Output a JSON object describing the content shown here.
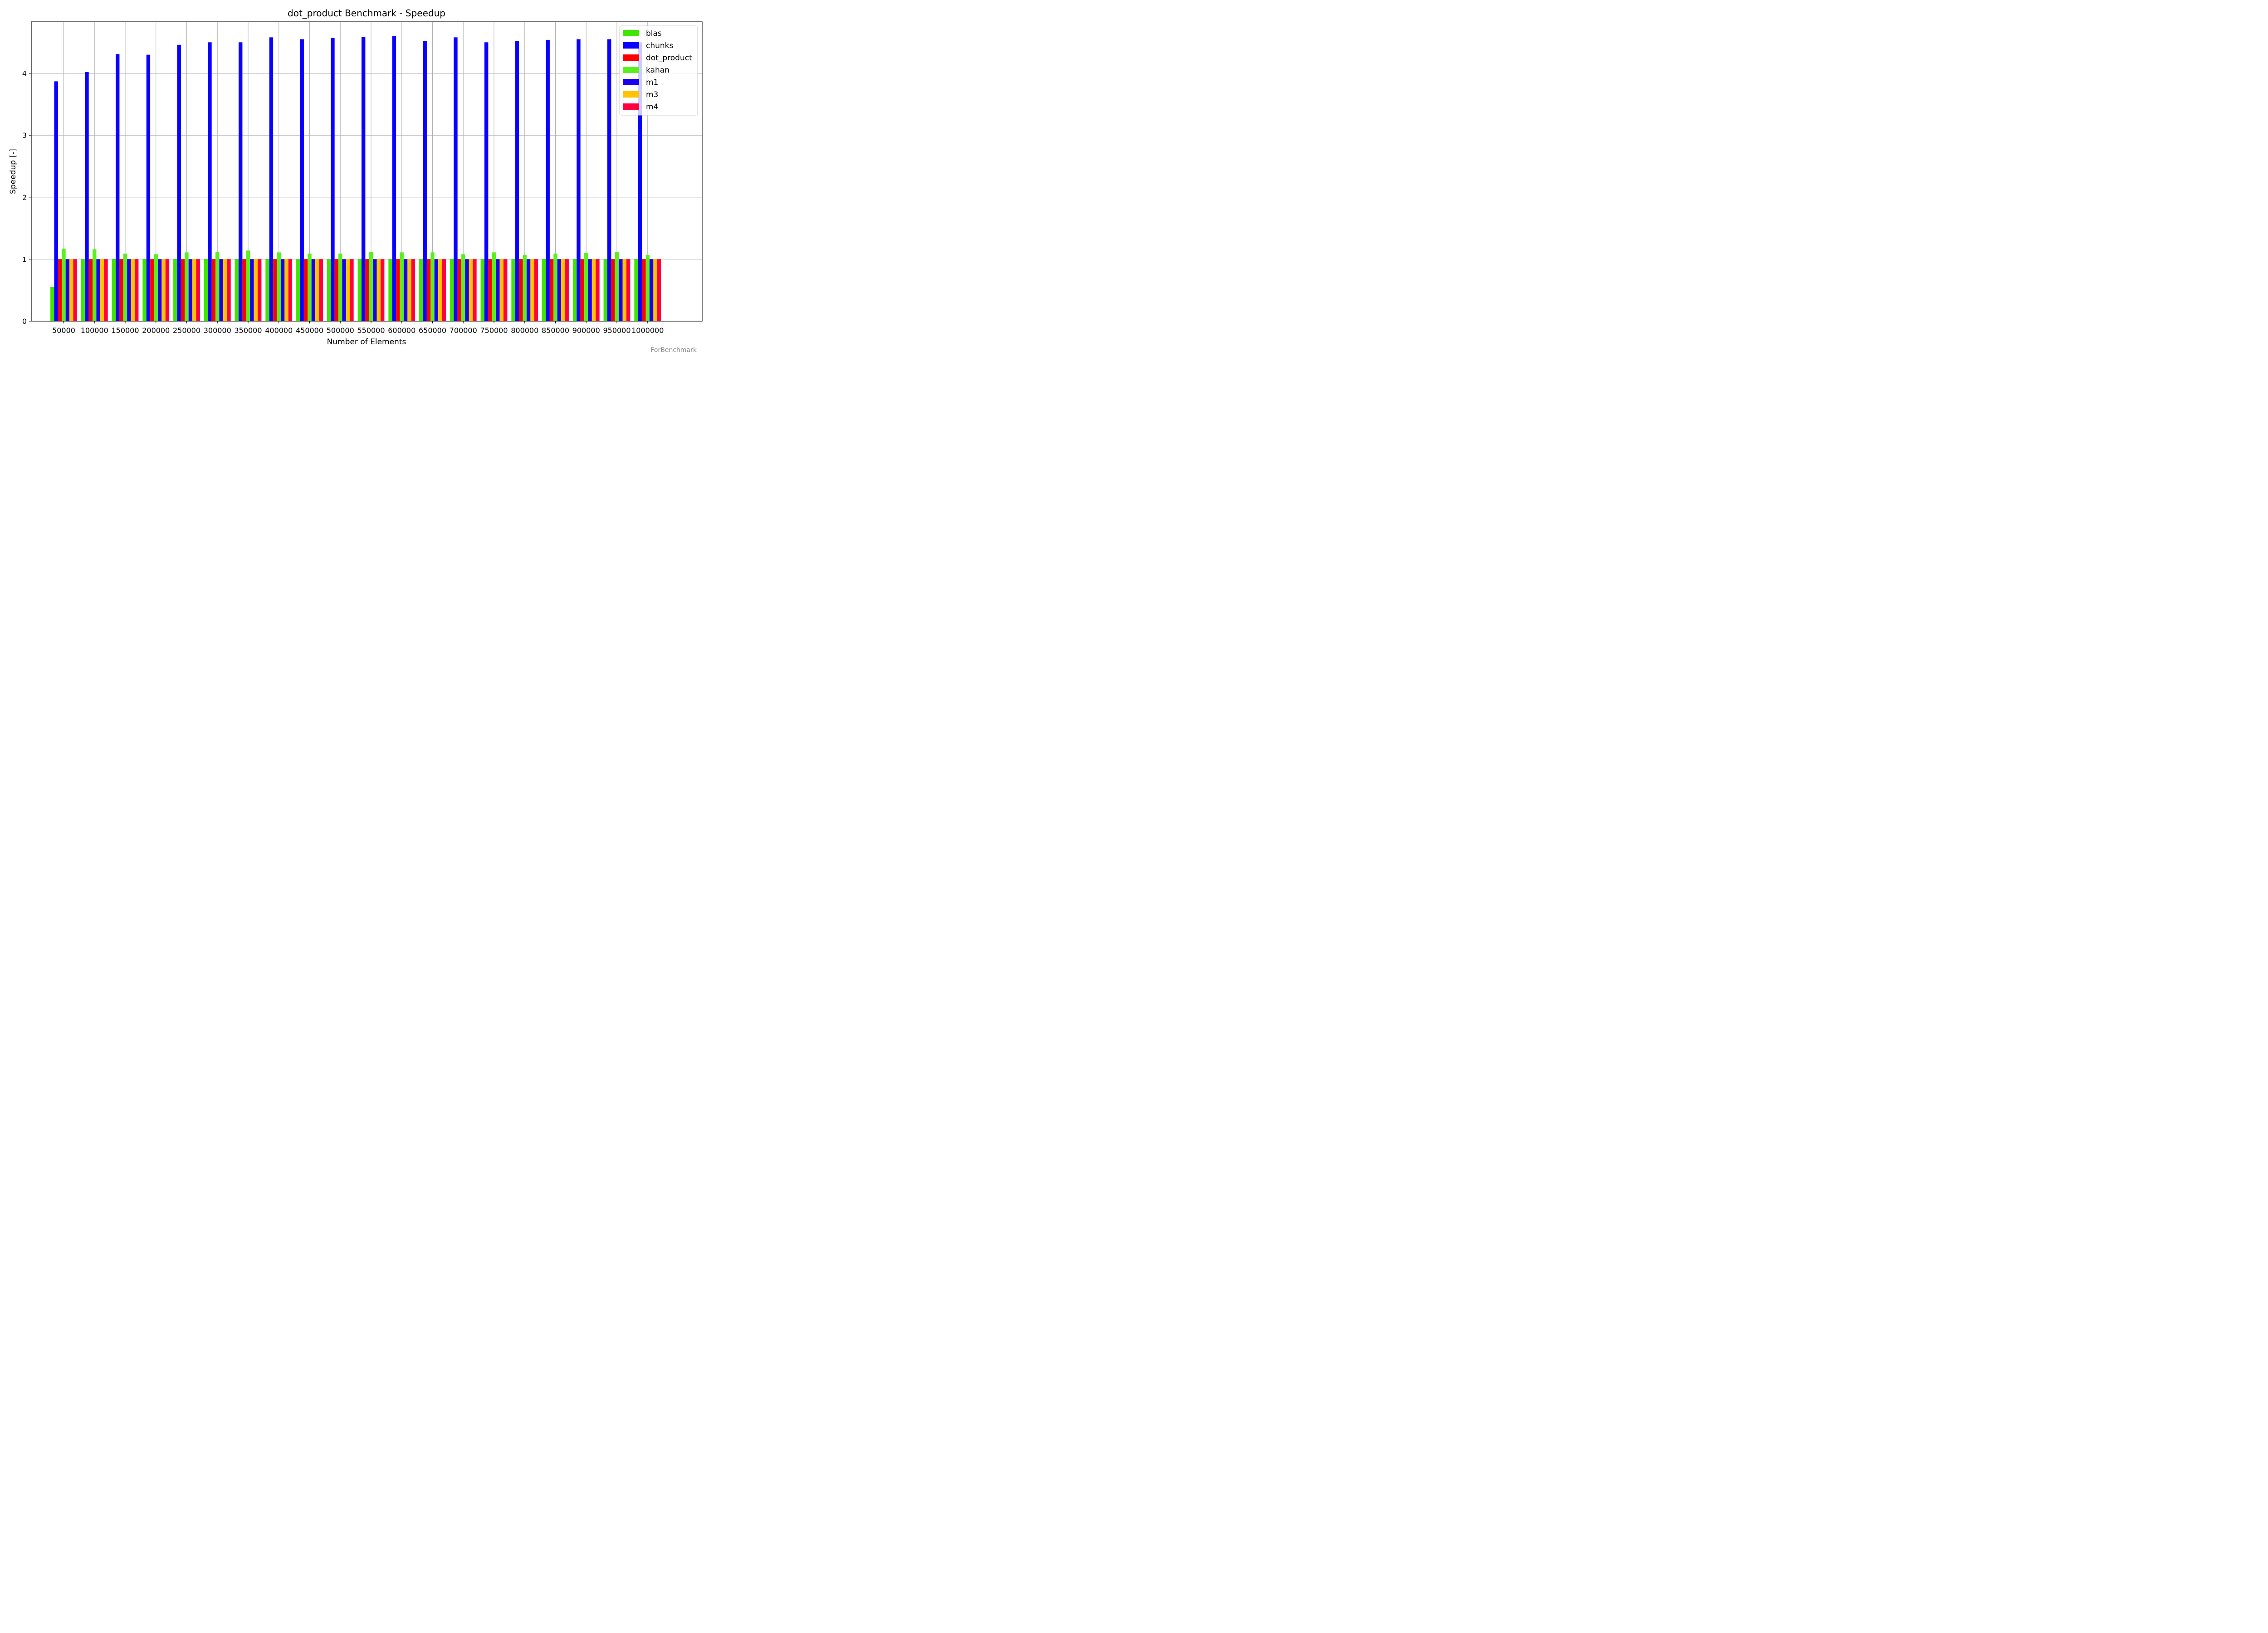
{
  "chart_data": {
    "type": "bar",
    "title": "dot_product Benchmark - Speedup",
    "xlabel": "Number of Elements",
    "ylabel": "Speedup [-]",
    "ylim": [
      0,
      4.8
    ],
    "yticks": [
      0,
      1,
      2,
      3,
      4
    ],
    "grid": true,
    "legend_position": "top-right",
    "categories": [
      "50000",
      "100000",
      "150000",
      "200000",
      "250000",
      "300000",
      "350000",
      "400000",
      "450000",
      "500000",
      "550000",
      "600000",
      "650000",
      "700000",
      "750000",
      "800000",
      "850000",
      "900000",
      "950000",
      "1000000"
    ],
    "series": [
      {
        "name": "blas",
        "color": "#3ee600",
        "values": [
          0.55,
          1,
          1,
          1,
          1,
          1,
          1,
          1,
          1,
          1,
          1,
          1,
          1,
          1,
          1,
          1,
          1,
          1,
          1,
          1
        ]
      },
      {
        "name": "chunks",
        "color": "#0a00ff",
        "values": [
          3.87,
          4.02,
          4.31,
          4.3,
          4.46,
          4.5,
          4.5,
          4.58,
          4.55,
          4.57,
          4.59,
          4.6,
          4.52,
          4.58,
          4.5,
          4.52,
          4.54,
          4.55,
          4.55,
          4.5
        ]
      },
      {
        "name": "dot_product",
        "color": "#ff0000",
        "values": [
          1,
          1,
          1,
          1,
          1,
          1,
          1,
          1,
          1,
          1,
          1,
          1,
          1,
          1,
          1,
          1,
          1,
          1,
          1,
          1
        ]
      },
      {
        "name": "kahan",
        "color": "#5af01e",
        "values": [
          1.17,
          1.16,
          1.09,
          1.08,
          1.11,
          1.12,
          1.14,
          1.11,
          1.09,
          1.09,
          1.12,
          1.11,
          1.11,
          1.08,
          1.11,
          1.07,
          1.09,
          1.1,
          1.12,
          1.07
        ]
      },
      {
        "name": "m1",
        "color": "#1a00f2",
        "values": [
          1,
          1,
          1,
          1,
          1,
          1,
          1,
          1,
          1,
          1,
          1,
          1,
          1,
          1,
          1,
          1,
          1,
          1,
          1,
          1
        ]
      },
      {
        "name": "m3",
        "color": "#ffc400",
        "values": [
          1,
          1,
          1,
          1,
          1,
          1,
          1,
          1,
          1,
          1,
          1,
          1,
          1,
          1,
          1,
          1,
          1,
          1,
          1,
          1
        ]
      },
      {
        "name": "m4",
        "color": "#ff0040",
        "values": [
          1,
          1,
          1,
          1,
          1,
          1,
          1,
          1,
          1,
          1,
          1,
          1,
          1,
          1,
          1,
          1,
          1,
          1,
          1,
          1
        ]
      }
    ]
  },
  "watermark": "ForBenchmark"
}
